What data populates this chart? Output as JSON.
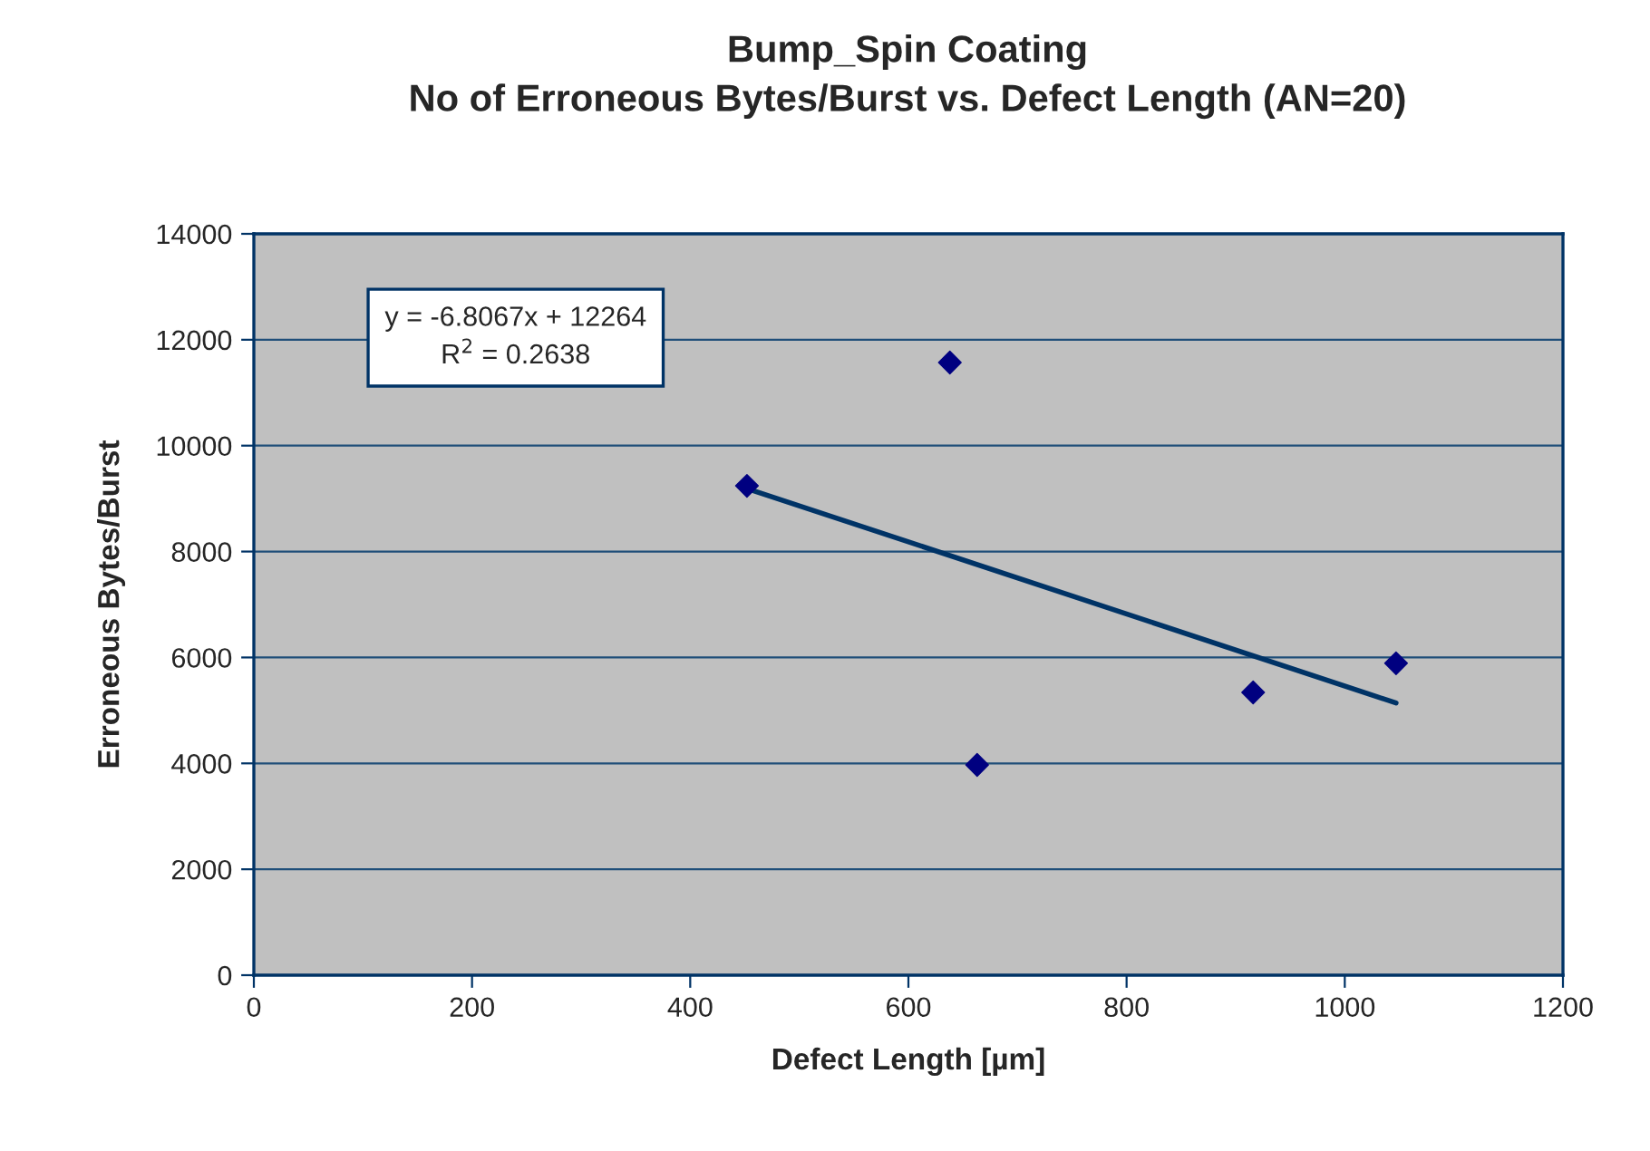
{
  "chart_data": {
    "type": "scatter",
    "title": "Bump_Spin Coating\nNo of Erroneous Bytes/Burst vs. Defect Length (AN=20)",
    "xlabel": "Defect Length [µm]",
    "ylabel": "Erroneous Bytes/Burst",
    "series": [
      {
        "color": "#000080",
        "x": [
          452,
          638,
          663,
          916,
          1047
        ],
        "values": [
          9240,
          11570,
          3970,
          5340,
          5890
        ],
        "marker": "diamond"
      },
      {
        "type": "line",
        "color": "#003366",
        "x": [
          452,
          1047
        ],
        "values": [
          9190,
          5140
        ],
        "marker": "none",
        "line_style": "solid"
      }
    ],
    "annotations": [
      "y = -6.8067x + 12264",
      "R$^{2}$ = 0.2638"
    ],
    "xlim": [
      0,
      1200
    ],
    "xticks": [
      0,
      200,
      400,
      600,
      800,
      1000,
      1200
    ],
    "ylim": [
      0,
      14000
    ],
    "yticks": [
      0,
      2000,
      4000,
      6000,
      8000,
      10000,
      12000,
      14000
    ],
    "grid": "y",
    "legend": false
  }
}
